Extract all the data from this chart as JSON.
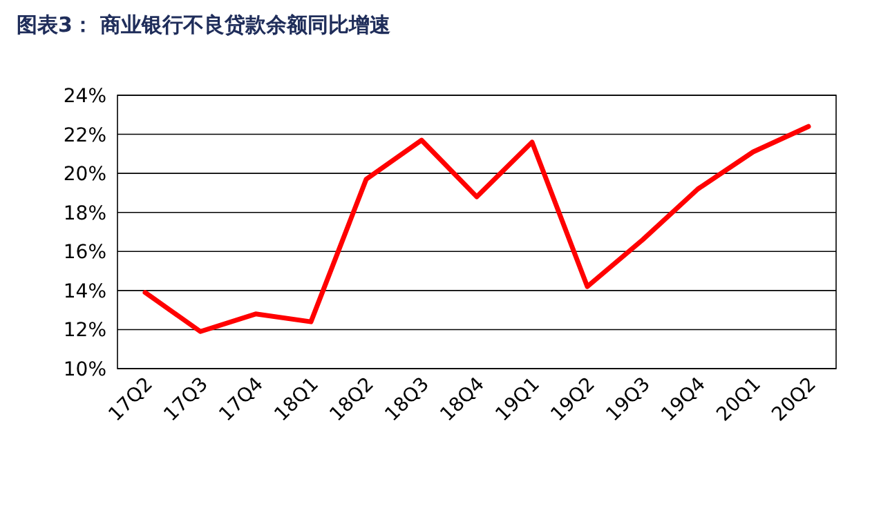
{
  "chart_data": {
    "type": "line",
    "title": "图表3：  商业银行不良贷款余额同比增速",
    "categories": [
      "17Q2",
      "17Q3",
      "17Q4",
      "18Q1",
      "18Q2",
      "18Q3",
      "18Q4",
      "19Q1",
      "19Q2",
      "19Q3",
      "19Q4",
      "20Q1",
      "20Q2"
    ],
    "series": [
      {
        "color": "#ff0000",
        "values": [
          13.9,
          11.9,
          12.8,
          12.4,
          19.7,
          21.7,
          18.8,
          21.6,
          14.2,
          16.6,
          19.2,
          21.1,
          22.4
        ]
      }
    ],
    "ylim": [
      10,
      24
    ],
    "yticks": [
      {
        "value": 10,
        "label": "10%"
      },
      {
        "value": 12,
        "label": "12%"
      },
      {
        "value": 14,
        "label": "14%"
      },
      {
        "value": 16,
        "label": "16%"
      },
      {
        "value": 18,
        "label": "18%"
      },
      {
        "value": 20,
        "label": "20%"
      },
      {
        "value": 22,
        "label": "22%"
      },
      {
        "value": 24,
        "label": "24%"
      }
    ],
    "grid": "y",
    "marker": "none",
    "line_style": "solid"
  }
}
